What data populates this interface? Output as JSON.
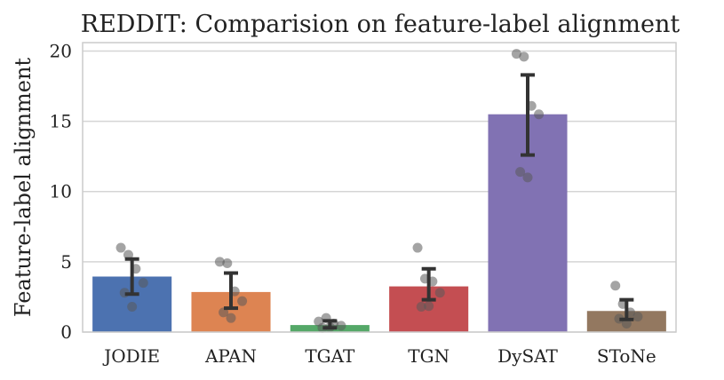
{
  "chart_data": {
    "type": "bar",
    "title": "REDDIT: Comparision on feature-label alignment",
    "xlabel": "",
    "ylabel": "Feature-label alignment",
    "categories": [
      "JODIE",
      "APAN",
      "TGAT",
      "TGN",
      "DySAT",
      "SToNe"
    ],
    "values": [
      3.95,
      2.85,
      0.5,
      3.25,
      15.5,
      1.5
    ],
    "error_low": [
      2.7,
      1.7,
      0.3,
      2.3,
      12.6,
      0.9
    ],
    "error_high": [
      5.2,
      4.2,
      0.8,
      4.5,
      18.3,
      2.3
    ],
    "points": [
      [
        6.0,
        5.5,
        4.5,
        3.5,
        2.8,
        1.8
      ],
      [
        5.0,
        4.9,
        2.9,
        2.2,
        1.4,
        1.0
      ],
      [
        0.75,
        1.0,
        0.6,
        0.45,
        0.3,
        0.35
      ],
      [
        6.0,
        3.8,
        3.6,
        2.8,
        1.8,
        1.85
      ],
      [
        19.8,
        19.6,
        16.1,
        15.5,
        11.4,
        11.0
      ],
      [
        3.3,
        2.0,
        1.4,
        1.1,
        0.95,
        0.6
      ]
    ],
    "colors": [
      "#4c72b0",
      "#dd8452",
      "#55a868",
      "#c44e52",
      "#8172b3",
      "#937860"
    ],
    "yticks": [
      0,
      5,
      10,
      15,
      20
    ],
    "ylim": [
      0,
      20.6
    ],
    "grid": "horizontal"
  }
}
